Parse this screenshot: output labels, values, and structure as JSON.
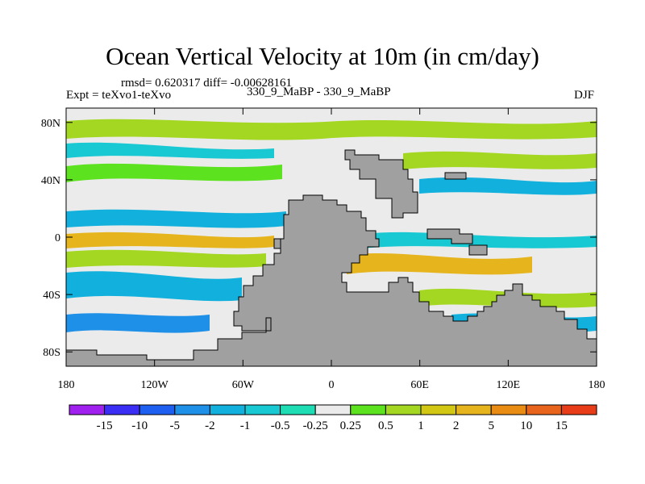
{
  "chart_data": {
    "type": "heatmap",
    "title": "Ocean Vertical Velocity at 10m (in cm/day)",
    "subtitle": "rmsd= 0.620317 diff= -0.00628161",
    "experiment": "Expt = teXvo1-teXvo",
    "run_label": "330_9_MaBP - 330_9_MaBP",
    "season": "DJF",
    "x_axis": {
      "range": [
        -180,
        180
      ],
      "ticks": [
        -180,
        -120,
        -60,
        0,
        60,
        120,
        180
      ],
      "tick_labels": [
        "180",
        "120W",
        "60W",
        "0",
        "60E",
        "120E",
        "180"
      ]
    },
    "y_axis": {
      "range": [
        -90,
        90
      ],
      "ticks": [
        80,
        40,
        0,
        -40,
        -80
      ],
      "tick_labels": [
        "80N",
        "40N",
        "0",
        "40S",
        "80S"
      ]
    },
    "colorbar": {
      "labels": [
        "-15",
        "-10",
        "-5",
        "-2",
        "-1",
        "-0.5",
        "-0.25",
        "0.25",
        "0.5",
        "1",
        "2",
        "5",
        "10",
        "15"
      ],
      "colors": [
        "#a020f0",
        "#3a2ef5",
        "#1e5ef0",
        "#1e90e8",
        "#12b0dc",
        "#18c8d2",
        "#1edcb4",
        "#ebebeb",
        "#5ce21e",
        "#a4d722",
        "#d2c814",
        "#e6b41c",
        "#e88c14",
        "#e8641c",
        "#e83c18"
      ]
    },
    "land_color": "#a0a0a0"
  }
}
